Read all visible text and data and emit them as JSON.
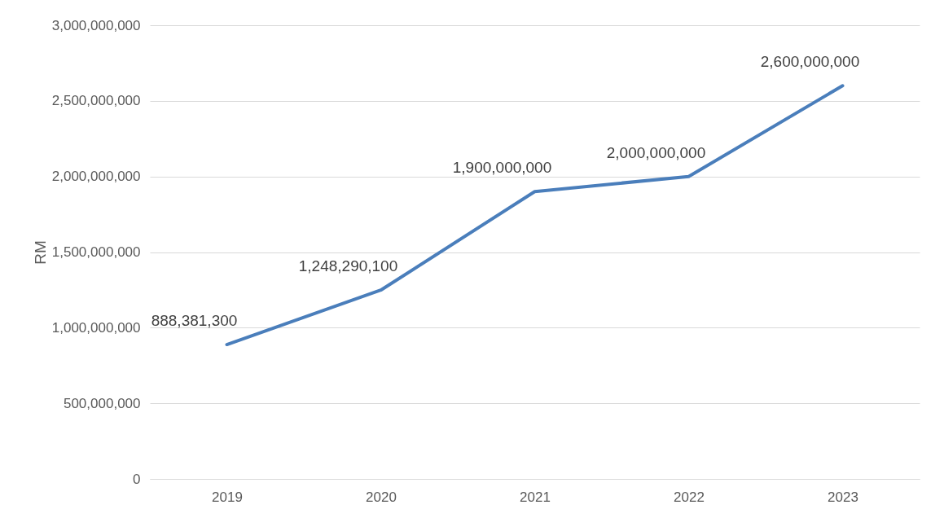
{
  "chart_data": {
    "type": "line",
    "ylabel": "RM",
    "categories": [
      "2019",
      "2020",
      "2021",
      "2022",
      "2023"
    ],
    "series": [
      {
        "color": "#4a7ebb",
        "values": [
          888381300,
          1248290100,
          1900000000,
          2000000000,
          2600000000
        ],
        "value_labels": [
          "888,381,300",
          "1,248,290,100",
          "1,900,000,000",
          "2,000,000,000",
          "2,600,000,000"
        ]
      }
    ],
    "ylim": [
      0,
      3000000000
    ],
    "yticks": [
      0,
      {
        "value": 500000000,
        "label": "500,000,000"
      },
      {
        "value": 1000000000,
        "label": "1,000,000,000"
      },
      {
        "value": 1500000000,
        "label": "1,500,000,000"
      },
      {
        "value": 2000000000,
        "label": "2,000,000,000"
      },
      {
        "value": 2500000000,
        "label": "2,500,000,000"
      },
      {
        "value": 3000000000,
        "label": "3,000,000,000"
      }
    ],
    "grid": "y",
    "legend": false,
    "marker": "none",
    "line_style": "solid"
  }
}
